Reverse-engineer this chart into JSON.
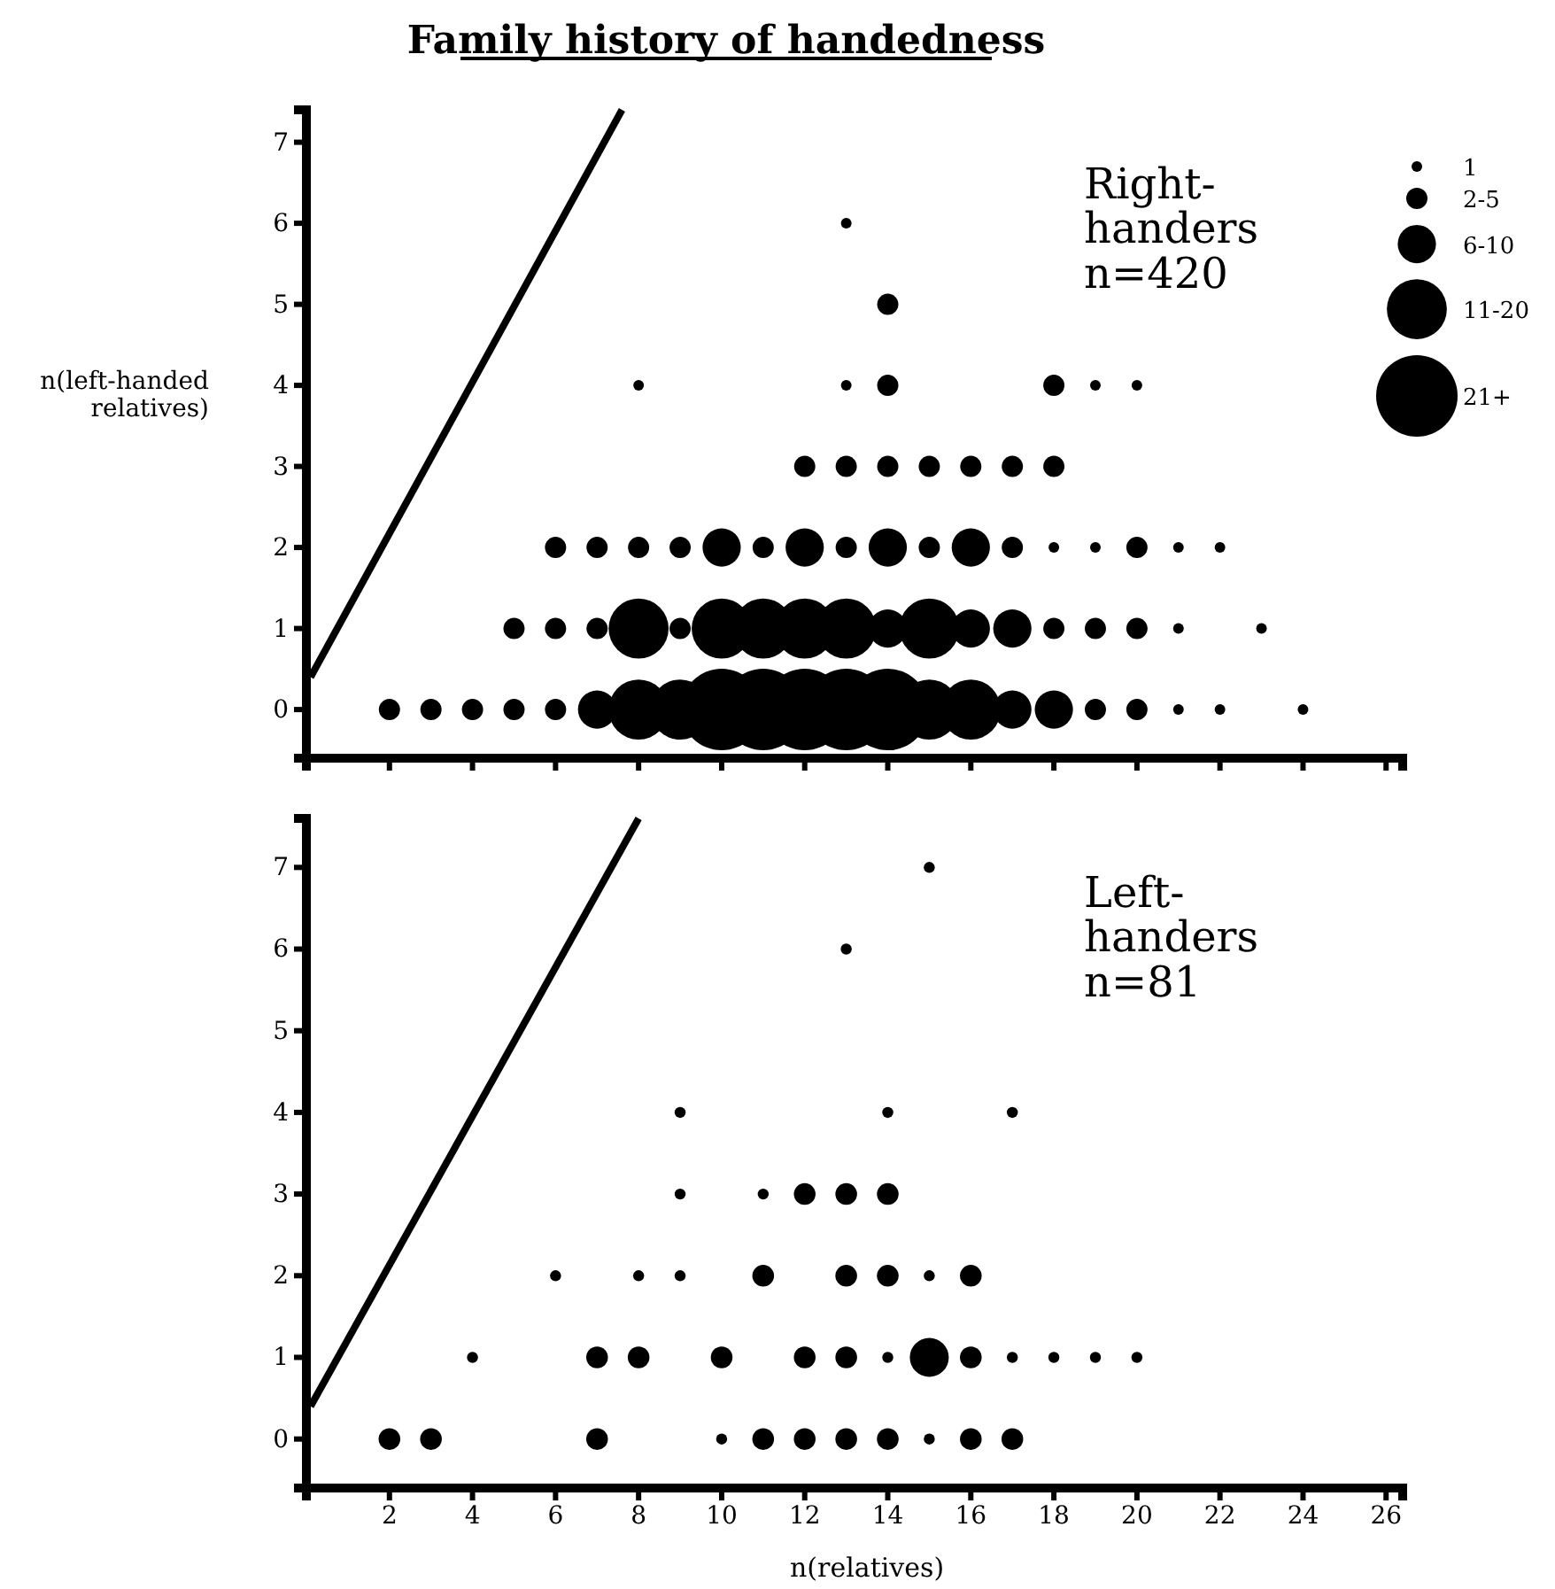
{
  "chart_data": [
    {
      "type": "bubble",
      "title": "Family history of handedness",
      "ylabel": "n(left-handed relatives)",
      "xlim": [
        0,
        26.4
      ],
      "ylim": [
        -0.6,
        7.4
      ],
      "xticks": [
        2,
        4,
        6,
        8,
        10,
        12,
        14,
        16,
        18,
        20,
        22,
        24,
        26
      ],
      "yticks": [
        0,
        1,
        2,
        3,
        4,
        5,
        6,
        7
      ],
      "tick_labels": "y",
      "grid": false,
      "size_legend": [
        {
          "value": 1,
          "label": "1"
        },
        {
          "value": 4,
          "label": "2-5"
        },
        {
          "value": 13,
          "label": "6-10"
        },
        {
          "value": 32,
          "label": "11-20"
        },
        {
          "value": 59,
          "label": "21+"
        }
      ],
      "annotations": [
        "Right-handers n=420"
      ],
      "series": [
        {
          "color": "#000000",
          "x": [
            2,
            3,
            4,
            5,
            6,
            7,
            8,
            9,
            10,
            11,
            12,
            13,
            14,
            15,
            16,
            17,
            18,
            19,
            20,
            21,
            22,
            24,
            5,
            6,
            7,
            8,
            9,
            10,
            11,
            12,
            13,
            14,
            15,
            16,
            17,
            18,
            19,
            20,
            21,
            23,
            6,
            7,
            8,
            9,
            10,
            11,
            12,
            13,
            14,
            15,
            16,
            17,
            18,
            19,
            20,
            21,
            22,
            12,
            13,
            14,
            15,
            16,
            17,
            18,
            8,
            13,
            14,
            18,
            19,
            20,
            14,
            13
          ],
          "values": [
            0,
            0,
            0,
            0,
            0,
            0,
            0,
            0,
            0,
            0,
            0,
            0,
            0,
            0,
            0,
            0,
            0,
            0,
            0,
            0,
            0,
            0,
            1,
            1,
            1,
            1,
            1,
            1,
            1,
            1,
            1,
            1,
            1,
            1,
            1,
            1,
            1,
            1,
            1,
            1,
            2,
            2,
            2,
            2,
            2,
            2,
            2,
            2,
            2,
            2,
            2,
            2,
            2,
            2,
            2,
            2,
            2,
            3,
            3,
            3,
            3,
            3,
            3,
            3,
            4,
            4,
            4,
            4,
            4,
            4,
            5,
            6
          ],
          "sizes": [
            4,
            4,
            4,
            4,
            4,
            13,
            32,
            32,
            59,
            59,
            59,
            59,
            59,
            32,
            32,
            13,
            13,
            4,
            4,
            1,
            1,
            1,
            4,
            4,
            4,
            32,
            4,
            32,
            32,
            32,
            32,
            13,
            32,
            13,
            13,
            4,
            4,
            4,
            1,
            1,
            4,
            4,
            4,
            4,
            13,
            4,
            13,
            4,
            13,
            4,
            13,
            4,
            1,
            1,
            4,
            1,
            1,
            4,
            4,
            4,
            4,
            4,
            4,
            4,
            1,
            1,
            4,
            4,
            1,
            1,
            4,
            1
          ]
        },
        {
          "type": "line",
          "color": "#000000",
          "x": [
            0.1,
            7.6
          ],
          "values": [
            0.4,
            7.4
          ]
        }
      ]
    },
    {
      "type": "bubble",
      "xlabel": "n(relatives)",
      "xlim": [
        0,
        26.4
      ],
      "ylim": [
        -0.6,
        7.6
      ],
      "xticks": [
        2,
        4,
        6,
        8,
        10,
        12,
        14,
        16,
        18,
        20,
        22,
        24,
        26
      ],
      "yticks": [
        0,
        1,
        2,
        3,
        4,
        5,
        6,
        7
      ],
      "grid": false,
      "annotations": [
        "Left-handers n=81"
      ],
      "series": [
        {
          "color": "#000000",
          "x": [
            2,
            3,
            7,
            10,
            11,
            12,
            13,
            14,
            15,
            16,
            17,
            4,
            7,
            8,
            10,
            12,
            13,
            14,
            15,
            16,
            17,
            18,
            19,
            20,
            6,
            8,
            9,
            11,
            13,
            14,
            15,
            16,
            9,
            11,
            12,
            13,
            14,
            9,
            14,
            17,
            13,
            15
          ],
          "values": [
            0,
            0,
            0,
            0,
            0,
            0,
            0,
            0,
            0,
            0,
            0,
            1,
            1,
            1,
            1,
            1,
            1,
            1,
            1,
            1,
            1,
            1,
            1,
            1,
            2,
            2,
            2,
            2,
            2,
            2,
            2,
            2,
            3,
            3,
            3,
            3,
            3,
            4,
            4,
            4,
            6,
            7
          ],
          "sizes": [
            0.31,
            0.31,
            0.31,
            0.08,
            0.31,
            0.31,
            0.31,
            0.31,
            0.08,
            0.31,
            0.31,
            0.08,
            0.31,
            0.31,
            0.31,
            0.31,
            0.31,
            0.08,
            1,
            0.31,
            0.08,
            0.08,
            0.08,
            0.08,
            0.08,
            0.08,
            0.08,
            0.31,
            0.31,
            0.31,
            0.08,
            0.31,
            0.08,
            0.08,
            0.31,
            0.31,
            0.31,
            0.08,
            0.08,
            0.08,
            0.08,
            0.08
          ]
        },
        {
          "type": "line",
          "color": "#000000",
          "x": [
            0.1,
            8
          ],
          "values": [
            0.4,
            7.6
          ]
        }
      ]
    }
  ]
}
